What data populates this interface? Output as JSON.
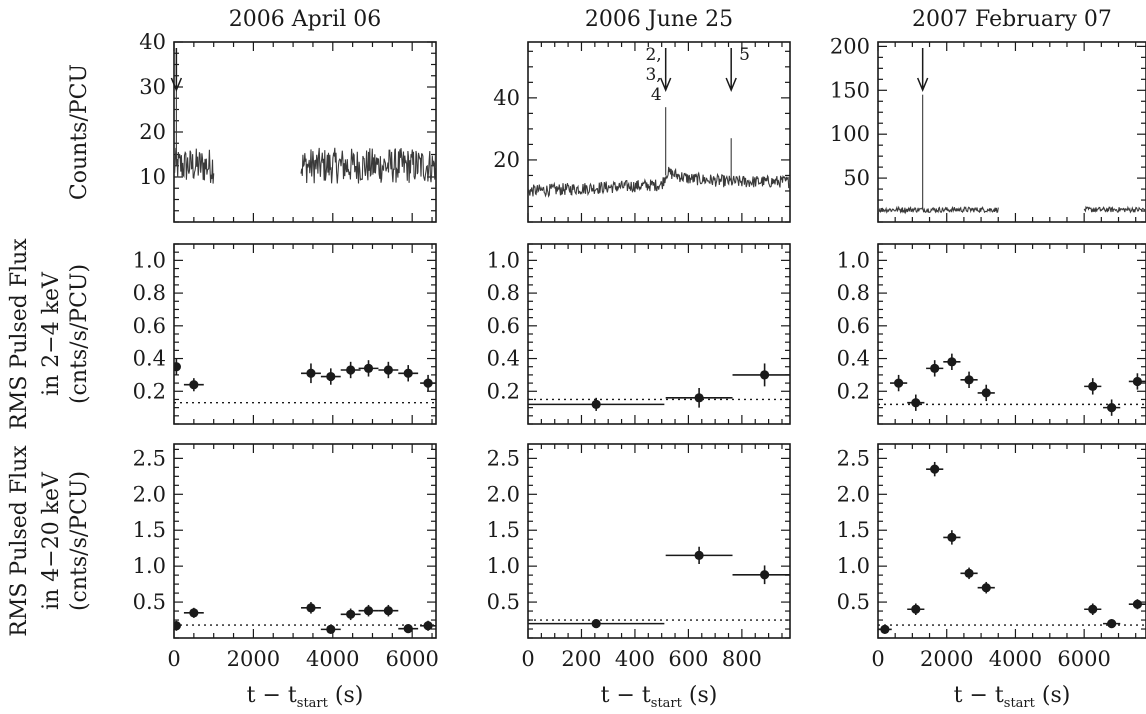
{
  "figure": {
    "ylabels": [
      {
        "lines": [
          "Counts/PCU"
        ]
      },
      {
        "lines": [
          "RMS Pulsed Flux",
          "in 2−4 keV",
          "(cnts/s/PCU)"
        ]
      },
      {
        "lines": [
          "RMS Pulsed Flux",
          "in 4−20 keV",
          "(cnts/s/PCU)"
        ]
      }
    ],
    "xlabel_main": "t − t",
    "xlabel_sub": "start",
    "xlabel_unit": "(s)"
  },
  "chart_data": [
    {
      "type": "line",
      "title": "2006 April 06",
      "xlim": [
        0,
        6600
      ],
      "ylim": [
        0,
        40
      ],
      "yticks": [
        10,
        20,
        30,
        40
      ],
      "xticks": [
        0,
        2000,
        4000,
        6000
      ],
      "xtick_labels": [],
      "ylabel": "Counts/PCU",
      "lightcurve": {
        "segments": [
          [
            0,
            1000
          ],
          [
            3200,
            6600
          ]
        ],
        "mean": 12.5,
        "scatter": 4,
        "spikes": [
          {
            "x": 60,
            "y": 36
          }
        ]
      },
      "annotations": [
        {
          "x": 60,
          "text": ""
        }
      ]
    },
    {
      "type": "line",
      "title": "2006 June 25",
      "xlim": [
        0,
        980
      ],
      "ylim": [
        0,
        58
      ],
      "yticks": [
        20,
        40
      ],
      "xticks": [
        0,
        200,
        400,
        600,
        800
      ],
      "xtick_labels": [],
      "lightcurve": {
        "segments": [
          [
            0,
            980
          ]
        ],
        "baseline": [
          [
            0,
            10
          ],
          [
            500,
            12
          ],
          [
            520,
            16
          ],
          [
            600,
            14
          ],
          [
            760,
            13
          ],
          [
            980,
            13
          ]
        ],
        "scatter": 2,
        "spikes": [
          {
            "x": 515,
            "y": 37
          },
          {
            "x": 760,
            "y": 27
          }
        ]
      },
      "annotations": [
        {
          "x": 515,
          "text": "2, 3, 4",
          "lines": [
            "2,",
            "3,",
            "4"
          ]
        },
        {
          "x": 760,
          "text": "5",
          "lines": [
            "5"
          ]
        }
      ]
    },
    {
      "type": "line",
      "title": "2007 February 07",
      "xlim": [
        0,
        7800
      ],
      "ylim": [
        0,
        205
      ],
      "yticks": [
        50,
        100,
        150,
        200
      ],
      "xticks": [
        0,
        2000,
        4000,
        6000
      ],
      "xtick_labels": [],
      "lightcurve": {
        "segments": [
          [
            0,
            3500
          ],
          [
            6000,
            7800
          ]
        ],
        "mean": 14,
        "scatter": 3,
        "spikes": [
          {
            "x": 1300,
            "y": 145
          }
        ]
      },
      "annotations": [
        {
          "x": 1300,
          "text": ""
        }
      ]
    },
    {
      "type": "scatter",
      "xlim": [
        0,
        6600
      ],
      "ylim": [
        0,
        1.1
      ],
      "yticks": [
        0.2,
        0.4,
        0.6,
        0.8,
        1.0
      ],
      "ytick_labels": [
        "0.2",
        "0.4",
        "0.6",
        "0.8",
        "1.0"
      ],
      "xticks": [
        0,
        2000,
        4000,
        6000
      ],
      "xtick_labels": [],
      "ylabel": "RMS Pulsed Flux in 2−4 keV (cnts/s/PCU)",
      "baseline": 0.13,
      "points": [
        {
          "x": 60,
          "xerr": 60,
          "y": 0.35,
          "yerr": 0.05
        },
        {
          "x": 500,
          "xerr": 250,
          "y": 0.24,
          "yerr": 0.04
        },
        {
          "x": 3450,
          "xerr": 250,
          "y": 0.31,
          "yerr": 0.06
        },
        {
          "x": 3950,
          "xerr": 250,
          "y": 0.29,
          "yerr": 0.05
        },
        {
          "x": 4450,
          "xerr": 250,
          "y": 0.33,
          "yerr": 0.05
        },
        {
          "x": 4900,
          "xerr": 250,
          "y": 0.34,
          "yerr": 0.05
        },
        {
          "x": 5400,
          "xerr": 250,
          "y": 0.33,
          "yerr": 0.05
        },
        {
          "x": 5900,
          "xerr": 250,
          "y": 0.31,
          "yerr": 0.05
        },
        {
          "x": 6400,
          "xerr": 200,
          "y": 0.25,
          "yerr": 0.05
        }
      ]
    },
    {
      "type": "scatter",
      "xlim": [
        0,
        980
      ],
      "ylim": [
        0,
        1.1
      ],
      "yticks": [
        0.2,
        0.4,
        0.6,
        0.8,
        1.0
      ],
      "ytick_labels": [
        "0.2",
        "0.4",
        "0.6",
        "0.8",
        "1.0"
      ],
      "xticks": [
        0,
        200,
        400,
        600,
        800
      ],
      "xtick_labels": [],
      "baseline": 0.15,
      "points": [
        {
          "x": 255,
          "xerr": 255,
          "y": 0.12,
          "yerr": 0.04
        },
        {
          "x": 640,
          "xerr": 125,
          "y": 0.16,
          "yerr": 0.06
        },
        {
          "x": 885,
          "xerr": 120,
          "y": 0.3,
          "yerr": 0.07
        }
      ]
    },
    {
      "type": "scatter",
      "xlim": [
        0,
        7800
      ],
      "ylim": [
        0,
        1.1
      ],
      "yticks": [
        0.2,
        0.4,
        0.6,
        0.8,
        1.0
      ],
      "ytick_labels": [
        "0.2",
        "0.4",
        "0.6",
        "0.8",
        "1.0"
      ],
      "xticks": [
        0,
        2000,
        4000,
        6000
      ],
      "xtick_labels": [],
      "baseline": 0.12,
      "points": [
        {
          "x": 600,
          "xerr": 250,
          "y": 0.25,
          "yerr": 0.05
        },
        {
          "x": 1100,
          "xerr": 250,
          "y": 0.13,
          "yerr": 0.05
        },
        {
          "x": 1650,
          "xerr": 250,
          "y": 0.34,
          "yerr": 0.05
        },
        {
          "x": 2150,
          "xerr": 250,
          "y": 0.38,
          "yerr": 0.05
        },
        {
          "x": 2650,
          "xerr": 250,
          "y": 0.27,
          "yerr": 0.05
        },
        {
          "x": 3150,
          "xerr": 250,
          "y": 0.19,
          "yerr": 0.05
        },
        {
          "x": 6250,
          "xerr": 250,
          "y": 0.23,
          "yerr": 0.05
        },
        {
          "x": 6800,
          "xerr": 250,
          "y": 0.1,
          "yerr": 0.05
        },
        {
          "x": 7550,
          "xerr": 250,
          "y": 0.26,
          "yerr": 0.05
        }
      ]
    },
    {
      "type": "scatter",
      "xlim": [
        0,
        6600
      ],
      "ylim": [
        0,
        2.7
      ],
      "yticks": [
        0.5,
        1.0,
        1.5,
        2.0,
        2.5
      ],
      "ytick_labels": [
        "0.5",
        "1.0",
        "1.5",
        "2.0",
        "2.5"
      ],
      "xticks": [
        0,
        2000,
        4000,
        6000
      ],
      "xtick_labels": [
        "0",
        "2000",
        "4000",
        "6000"
      ],
      "ylabel": "RMS Pulsed Flux in 4−20 keV (cnts/s/PCU)",
      "baseline": 0.18,
      "points": [
        {
          "x": 60,
          "xerr": 60,
          "y": 0.17,
          "yerr": 0.07
        },
        {
          "x": 500,
          "xerr": 250,
          "y": 0.35,
          "yerr": 0.07
        },
        {
          "x": 3450,
          "xerr": 250,
          "y": 0.42,
          "yerr": 0.08
        },
        {
          "x": 3950,
          "xerr": 250,
          "y": 0.12,
          "yerr": 0.06
        },
        {
          "x": 4450,
          "xerr": 250,
          "y": 0.33,
          "yerr": 0.08
        },
        {
          "x": 4900,
          "xerr": 250,
          "y": 0.38,
          "yerr": 0.08
        },
        {
          "x": 5400,
          "xerr": 250,
          "y": 0.38,
          "yerr": 0.08
        },
        {
          "x": 5900,
          "xerr": 250,
          "y": 0.13,
          "yerr": 0.06
        },
        {
          "x": 6400,
          "xerr": 200,
          "y": 0.17,
          "yerr": 0.07
        }
      ]
    },
    {
      "type": "scatter",
      "xlim": [
        0,
        980
      ],
      "ylim": [
        0,
        2.7
      ],
      "yticks": [
        0.5,
        1.0,
        1.5,
        2.0,
        2.5
      ],
      "ytick_labels": [
        "0.5",
        "1.0",
        "1.5",
        "2.0",
        "2.5"
      ],
      "xticks": [
        0,
        200,
        400,
        600,
        800
      ],
      "xtick_labels": [
        "0",
        "200",
        "400",
        "600",
        "800"
      ],
      "baseline": 0.25,
      "points": [
        {
          "x": 255,
          "xerr": 255,
          "y": 0.2,
          "yerr": 0.06
        },
        {
          "x": 640,
          "xerr": 125,
          "y": 1.15,
          "yerr": 0.12
        },
        {
          "x": 885,
          "xerr": 120,
          "y": 0.88,
          "yerr": 0.13
        }
      ]
    },
    {
      "type": "scatter",
      "xlim": [
        0,
        7800
      ],
      "ylim": [
        0,
        2.7
      ],
      "yticks": [
        0.5,
        1.0,
        1.5,
        2.0,
        2.5
      ],
      "ytick_labels": [
        "0.5",
        "1.0",
        "1.5",
        "2.0",
        "2.5"
      ],
      "xticks": [
        0,
        2000,
        4000,
        6000
      ],
      "xtick_labels": [
        "0",
        "2000",
        "4000",
        "6000"
      ],
      "baseline": 0.18,
      "points": [
        {
          "x": 200,
          "xerr": 200,
          "y": 0.12,
          "yerr": 0.06
        },
        {
          "x": 1100,
          "xerr": 250,
          "y": 0.4,
          "yerr": 0.08
        },
        {
          "x": 1650,
          "xerr": 250,
          "y": 2.35,
          "yerr": 0.1
        },
        {
          "x": 2150,
          "xerr": 250,
          "y": 1.4,
          "yerr": 0.1
        },
        {
          "x": 2650,
          "xerr": 250,
          "y": 0.9,
          "yerr": 0.08
        },
        {
          "x": 3150,
          "xerr": 250,
          "y": 0.7,
          "yerr": 0.08
        },
        {
          "x": 6250,
          "xerr": 250,
          "y": 0.4,
          "yerr": 0.08
        },
        {
          "x": 6800,
          "xerr": 250,
          "y": 0.2,
          "yerr": 0.06
        },
        {
          "x": 7550,
          "xerr": 250,
          "y": 0.47,
          "yerr": 0.07
        }
      ]
    }
  ]
}
